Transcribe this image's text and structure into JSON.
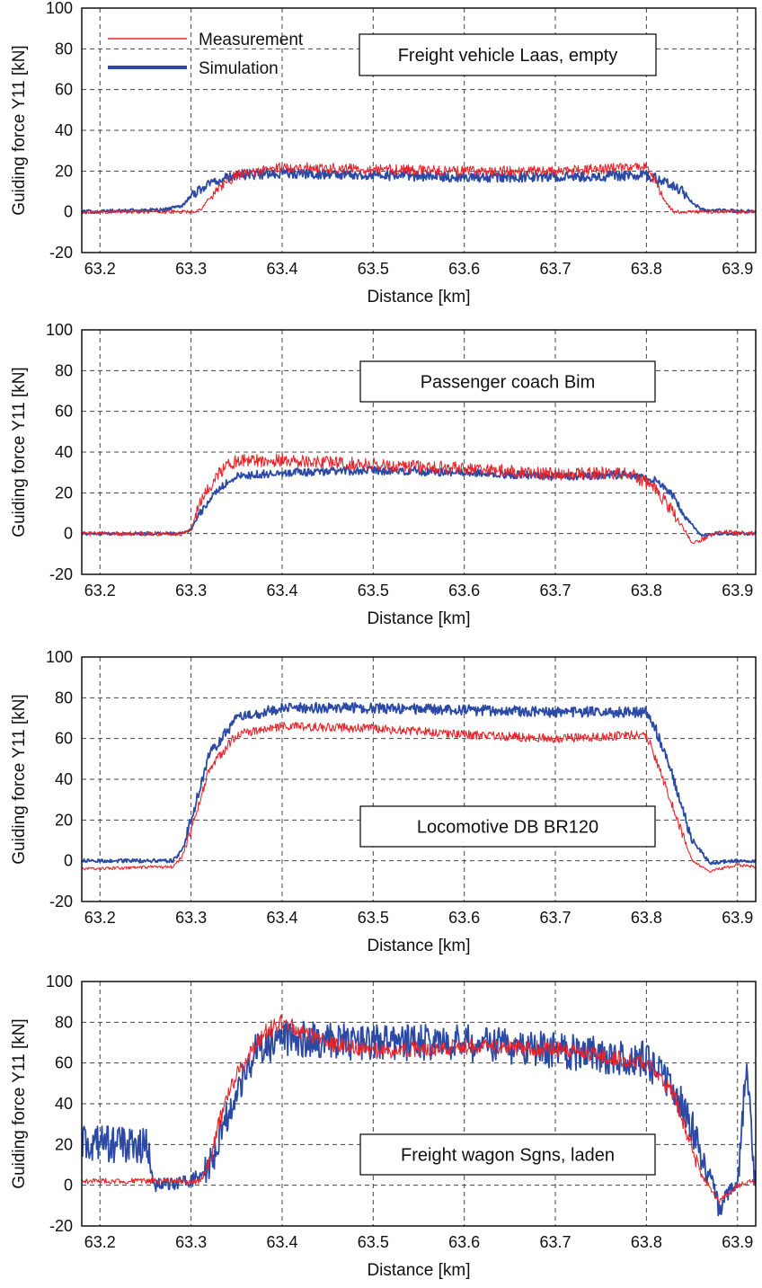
{
  "colors": {
    "measurement": "#e8252b",
    "simulation": "#2b4aa5"
  },
  "legend": [
    {
      "label": "Measurement",
      "color": "#e8252b",
      "width": "thin"
    },
    {
      "label": "Simulation",
      "color": "#2b4aa5",
      "width": "thick"
    }
  ],
  "chart_data": [
    {
      "type": "line",
      "annotation": "Freight vehicle Laas, empty",
      "xlabel": "Distance [km]",
      "ylabel": "Guiding force Y11  [kN]",
      "xlim": [
        63.18,
        63.92
      ],
      "ylim": [
        -20,
        100
      ],
      "xticks": [
        "63.2",
        "63.3",
        "63.4",
        "63.5",
        "63.6",
        "63.7",
        "63.8",
        "63.9"
      ],
      "yticks": [
        "-20",
        "0",
        "20",
        "40",
        "60",
        "80",
        "100"
      ],
      "grid": true,
      "legend_position": "top-left",
      "series": [
        {
          "name": "Measurement",
          "x": [
            63.18,
            63.3,
            63.31,
            63.33,
            63.35,
            63.4,
            63.5,
            63.6,
            63.7,
            63.8,
            63.81,
            63.82,
            63.83,
            63.92
          ],
          "y": [
            0,
            0,
            1,
            12,
            18,
            22,
            21,
            20,
            20,
            22,
            15,
            5,
            0,
            0
          ]
        },
        {
          "name": "Simulation",
          "x": [
            63.18,
            63.27,
            63.29,
            63.3,
            63.32,
            63.35,
            63.4,
            63.5,
            63.6,
            63.7,
            63.8,
            63.82,
            63.84,
            63.85,
            63.86,
            63.92
          ],
          "y": [
            0,
            1,
            3,
            8,
            14,
            18,
            19,
            18,
            17,
            17,
            18,
            15,
            10,
            5,
            1,
            0
          ]
        }
      ]
    },
    {
      "type": "line",
      "annotation": "Passenger coach Bim",
      "xlabel": "Distance [km]",
      "ylabel": "Guiding force Y11  [kN]",
      "xlim": [
        63.18,
        63.92
      ],
      "ylim": [
        -20,
        100
      ],
      "xticks": [
        "63.2",
        "63.3",
        "63.4",
        "63.5",
        "63.6",
        "63.7",
        "63.8",
        "63.9"
      ],
      "yticks": [
        "-20",
        "0",
        "20",
        "40",
        "60",
        "80",
        "100"
      ],
      "grid": true,
      "series": [
        {
          "name": "Measurement",
          "x": [
            63.18,
            63.29,
            63.3,
            63.31,
            63.33,
            63.35,
            63.4,
            63.5,
            63.6,
            63.7,
            63.78,
            63.81,
            63.83,
            63.85,
            63.86,
            63.88,
            63.92
          ],
          "y": [
            0,
            0,
            2,
            15,
            30,
            36,
            36,
            34,
            32,
            29,
            30,
            22,
            10,
            -4,
            -3,
            1,
            0
          ]
        },
        {
          "name": "Simulation",
          "x": [
            63.18,
            63.29,
            63.3,
            63.31,
            63.33,
            63.35,
            63.4,
            63.5,
            63.6,
            63.7,
            63.78,
            63.81,
            63.83,
            63.84,
            63.86,
            63.88,
            63.92
          ],
          "y": [
            0,
            0,
            2,
            10,
            22,
            28,
            30,
            31,
            30,
            28,
            29,
            26,
            18,
            10,
            -1,
            0,
            0
          ]
        }
      ]
    },
    {
      "type": "line",
      "annotation": "Locomotive DB BR120",
      "xlabel": "Distance [km]",
      "ylabel": "Guiding force Y11  [kN]",
      "xlim": [
        63.18,
        63.92
      ],
      "ylim": [
        -20,
        100
      ],
      "xticks": [
        "63.2",
        "63.3",
        "63.4",
        "63.5",
        "63.6",
        "63.7",
        "63.8",
        "63.9"
      ],
      "yticks": [
        "-20",
        "0",
        "20",
        "40",
        "60",
        "80",
        "100"
      ],
      "grid": true,
      "series": [
        {
          "name": "Measurement",
          "x": [
            63.18,
            63.28,
            63.29,
            63.3,
            63.32,
            63.35,
            63.4,
            63.5,
            63.6,
            63.7,
            63.8,
            63.81,
            63.83,
            63.85,
            63.87,
            63.9,
            63.92
          ],
          "y": [
            -4,
            -3,
            2,
            15,
            45,
            62,
            66,
            65,
            62,
            60,
            62,
            50,
            25,
            0,
            -5,
            -2,
            -3
          ]
        },
        {
          "name": "Simulation",
          "x": [
            63.18,
            63.28,
            63.29,
            63.3,
            63.32,
            63.35,
            63.4,
            63.5,
            63.6,
            63.7,
            63.8,
            63.81,
            63.83,
            63.85,
            63.87,
            63.9,
            63.92
          ],
          "y": [
            0,
            0,
            5,
            20,
            52,
            70,
            75,
            75,
            74,
            73,
            73,
            65,
            40,
            10,
            -1,
            0,
            0
          ]
        }
      ]
    },
    {
      "type": "line",
      "annotation": "Freight wagon Sgns, laden",
      "xlabel": "Distance [km]",
      "ylabel": "Guiding force Y11  [kN]",
      "xlim": [
        63.18,
        63.92
      ],
      "ylim": [
        -20,
        100
      ],
      "xticks": [
        "63.2",
        "63.3",
        "63.4",
        "63.5",
        "63.6",
        "63.7",
        "63.8",
        "63.9"
      ],
      "yticks": [
        "-20",
        "0",
        "20",
        "40",
        "60",
        "80",
        "100"
      ],
      "grid": true,
      "series": [
        {
          "name": "Measurement",
          "x": [
            63.18,
            63.31,
            63.32,
            63.33,
            63.35,
            63.38,
            63.4,
            63.45,
            63.5,
            63.6,
            63.7,
            63.8,
            63.83,
            63.86,
            63.88,
            63.9,
            63.92
          ],
          "y": [
            2,
            2,
            10,
            30,
            55,
            75,
            80,
            70,
            66,
            68,
            67,
            60,
            45,
            5,
            -8,
            0,
            2
          ]
        },
        {
          "name": "Simulation",
          "x": [
            63.18,
            63.25,
            63.26,
            63.3,
            63.32,
            63.34,
            63.37,
            63.4,
            63.5,
            63.6,
            63.7,
            63.8,
            63.84,
            63.87,
            63.88,
            63.9,
            63.91,
            63.92
          ],
          "y": [
            20,
            20,
            0,
            2,
            10,
            35,
            65,
            72,
            70,
            70,
            66,
            62,
            40,
            5,
            -10,
            2,
            60,
            0
          ]
        }
      ]
    }
  ]
}
